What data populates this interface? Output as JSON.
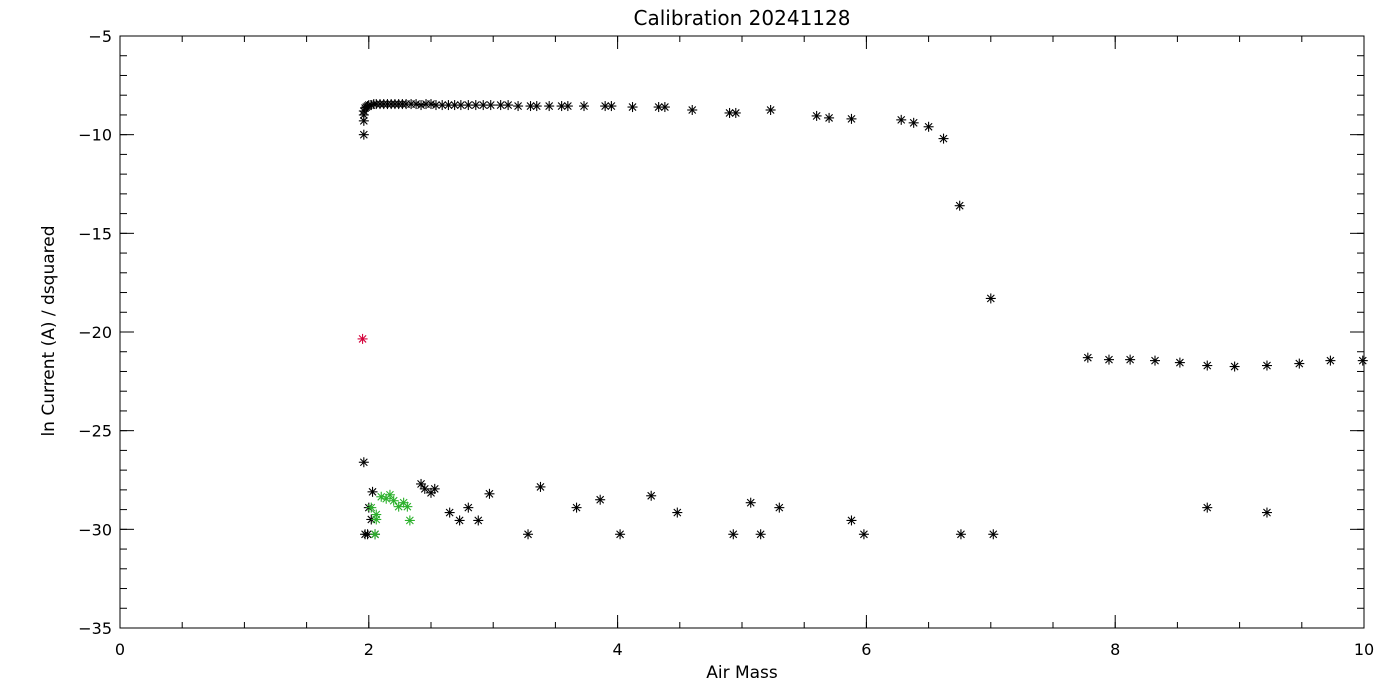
{
  "chart_data": {
    "type": "scatter",
    "title": "Calibration 20241128",
    "xlabel": "Air Mass",
    "ylabel": "ln Current (A) / dsquared",
    "xlim": [
      0,
      10
    ],
    "ylim": [
      -35,
      -5
    ],
    "x_ticks": [
      0,
      2,
      4,
      6,
      8,
      10
    ],
    "y_ticks": [
      -35,
      -30,
      -25,
      -20,
      -15,
      -10,
      -5
    ],
    "x_ticks_minor_step": 0.5,
    "y_ticks_minor_step": 1,
    "grid": false,
    "legend": "none",
    "marker": "asterisk",
    "series": [
      {
        "color": "#000000",
        "points": [
          [
            1.96,
            -10.0
          ],
          [
            1.96,
            -9.3
          ],
          [
            1.96,
            -9.0
          ],
          [
            1.96,
            -8.8
          ],
          [
            1.97,
            -8.65
          ],
          [
            1.98,
            -8.6
          ],
          [
            1.99,
            -8.55
          ],
          [
            2.0,
            -8.5
          ],
          [
            2.02,
            -8.5
          ],
          [
            2.04,
            -8.45
          ],
          [
            2.06,
            -8.45
          ],
          [
            2.09,
            -8.45
          ],
          [
            2.12,
            -8.45
          ],
          [
            2.15,
            -8.45
          ],
          [
            2.18,
            -8.45
          ],
          [
            2.21,
            -8.45
          ],
          [
            2.24,
            -8.45
          ],
          [
            2.27,
            -8.45
          ],
          [
            2.3,
            -8.45
          ],
          [
            2.34,
            -8.45
          ],
          [
            2.38,
            -8.45
          ],
          [
            2.42,
            -8.5
          ],
          [
            2.46,
            -8.45
          ],
          [
            2.5,
            -8.45
          ],
          [
            2.54,
            -8.5
          ],
          [
            2.59,
            -8.5
          ],
          [
            2.64,
            -8.5
          ],
          [
            2.69,
            -8.5
          ],
          [
            2.74,
            -8.5
          ],
          [
            2.8,
            -8.5
          ],
          [
            2.86,
            -8.5
          ],
          [
            2.92,
            -8.5
          ],
          [
            2.98,
            -8.5
          ],
          [
            3.06,
            -8.5
          ],
          [
            3.12,
            -8.5
          ],
          [
            3.2,
            -8.55
          ],
          [
            3.3,
            -8.55
          ],
          [
            3.35,
            -8.55
          ],
          [
            3.45,
            -8.55
          ],
          [
            3.55,
            -8.55
          ],
          [
            3.6,
            -8.55
          ],
          [
            3.73,
            -8.55
          ],
          [
            3.9,
            -8.55
          ],
          [
            3.95,
            -8.55
          ],
          [
            4.12,
            -8.6
          ],
          [
            4.33,
            -8.6
          ],
          [
            4.38,
            -8.6
          ],
          [
            4.6,
            -8.75
          ],
          [
            4.9,
            -8.9
          ],
          [
            4.95,
            -8.9
          ],
          [
            5.23,
            -8.75
          ],
          [
            5.6,
            -9.05
          ],
          [
            5.7,
            -9.15
          ],
          [
            5.88,
            -9.2
          ],
          [
            6.28,
            -9.25
          ],
          [
            6.38,
            -9.4
          ],
          [
            6.5,
            -9.6
          ],
          [
            6.62,
            -10.2
          ],
          [
            6.75,
            -13.6
          ],
          [
            7.0,
            -18.3
          ],
          [
            7.78,
            -21.3
          ],
          [
            7.95,
            -21.4
          ],
          [
            8.12,
            -21.4
          ],
          [
            8.32,
            -21.45
          ],
          [
            8.52,
            -21.55
          ],
          [
            8.74,
            -21.7
          ],
          [
            8.96,
            -21.75
          ],
          [
            9.22,
            -21.7
          ],
          [
            9.48,
            -21.6
          ],
          [
            9.73,
            -21.45
          ],
          [
            9.99,
            -21.45
          ],
          [
            1.96,
            -26.6
          ],
          [
            1.97,
            -30.25
          ],
          [
            1.99,
            -30.25
          ],
          [
            2.0,
            -28.9
          ],
          [
            2.02,
            -29.5
          ],
          [
            2.03,
            -28.1
          ],
          [
            2.05,
            -30.25
          ],
          [
            2.42,
            -27.7
          ],
          [
            2.45,
            -27.95
          ],
          [
            2.5,
            -28.15
          ],
          [
            2.53,
            -27.95
          ],
          [
            2.65,
            -29.15
          ],
          [
            2.73,
            -29.55
          ],
          [
            2.8,
            -28.9
          ],
          [
            2.88,
            -29.55
          ],
          [
            2.97,
            -28.2
          ],
          [
            3.28,
            -30.25
          ],
          [
            3.38,
            -27.85
          ],
          [
            3.67,
            -28.9
          ],
          [
            3.86,
            -28.5
          ],
          [
            4.02,
            -30.25
          ],
          [
            4.27,
            -28.3
          ],
          [
            4.48,
            -29.15
          ],
          [
            4.93,
            -30.25
          ],
          [
            5.07,
            -28.65
          ],
          [
            5.15,
            -30.25
          ],
          [
            5.3,
            -28.9
          ],
          [
            5.88,
            -29.55
          ],
          [
            5.98,
            -30.25
          ],
          [
            6.76,
            -30.25
          ],
          [
            7.02,
            -30.25
          ],
          [
            8.74,
            -28.9
          ],
          [
            9.22,
            -29.15
          ]
        ]
      },
      {
        "color": "#2bb02b",
        "points": [
          [
            2.02,
            -28.9
          ],
          [
            2.05,
            -30.25
          ],
          [
            2.06,
            -29.5
          ],
          [
            2.06,
            -29.25
          ],
          [
            2.1,
            -28.35
          ],
          [
            2.14,
            -28.45
          ],
          [
            2.17,
            -28.25
          ],
          [
            2.2,
            -28.55
          ],
          [
            2.24,
            -28.85
          ],
          [
            2.28,
            -28.65
          ],
          [
            2.31,
            -28.85
          ],
          [
            2.33,
            -29.55
          ]
        ]
      },
      {
        "color": "#d4003a",
        "points": [
          [
            1.95,
            -20.35
          ]
        ]
      }
    ]
  }
}
